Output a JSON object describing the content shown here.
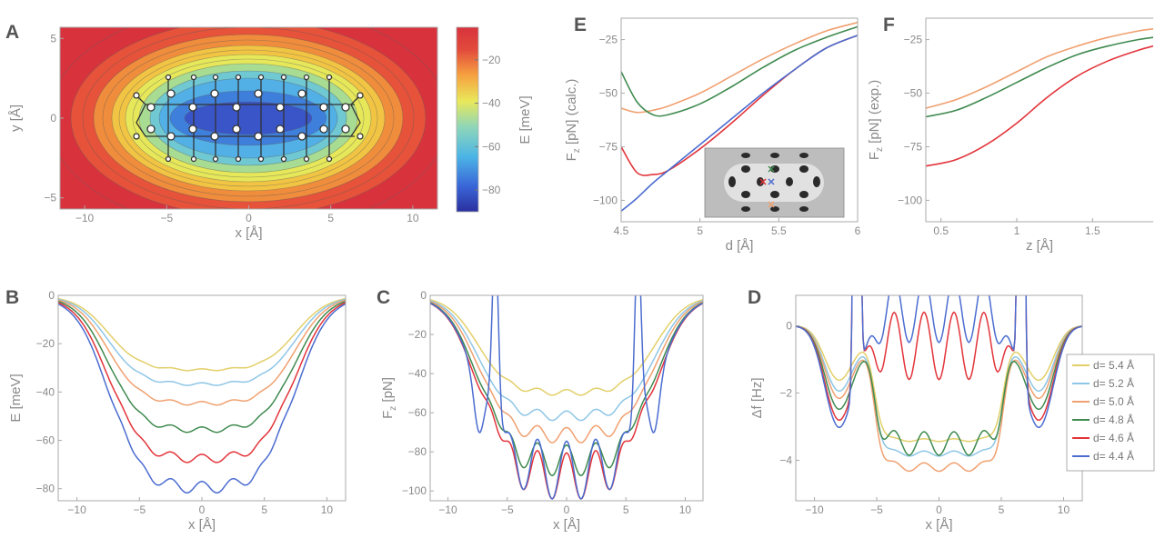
{
  "colors": {
    "d_5_4": "#e3cf6a",
    "d_5_2": "#8ec6e6",
    "d_5_0": "#f0a070",
    "d_4_8": "#3f8a4f",
    "d_4_6": "#e2343a",
    "d_4_4": "#4b6cd0",
    "axis": "#b0b0b0",
    "text": "#8a8a8a"
  },
  "chart_data": [
    {
      "panel": "A",
      "type": "heatmap",
      "xlabel": "x [Å]",
      "ylabel": "y [Å]",
      "xlim": [
        -11.5,
        11.5
      ],
      "ylim": [
        -5.7,
        5.7
      ],
      "xticks": [
        -10,
        -5,
        0,
        5,
        10
      ],
      "yticks": [
        -5,
        0,
        5
      ],
      "colorbar_label": "E [meV]",
      "colorbar_ticks": [
        -20,
        -40,
        -60,
        -80
      ],
      "colorbar_range": [
        -90,
        -5
      ],
      "colorscale": "jet"
    },
    {
      "panel": "E",
      "type": "line",
      "xlabel": "d [Å]",
      "ylabel": "F_z [pN] (calc.)",
      "ylabel_main": "F",
      "ylabel_sub": "z",
      "ylabel_rest": " [pN] (calc.)",
      "xlim": [
        4.5,
        6
      ],
      "ylim": [
        -110,
        -15
      ],
      "xticks": [
        4.5,
        5,
        5.5,
        6
      ],
      "yticks": [
        -25,
        -50,
        -75,
        -100
      ],
      "series": [
        {
          "color_key": "d_5_0",
          "x": [
            4.5,
            4.6,
            4.7,
            4.8,
            5.0,
            5.2,
            5.4,
            5.6,
            5.8,
            6.0
          ],
          "y": [
            -57,
            -59,
            -58,
            -56,
            -50,
            -42,
            -34,
            -27,
            -21,
            -17
          ]
        },
        {
          "color_key": "d_4_8",
          "x": [
            4.5,
            4.6,
            4.7,
            4.8,
            5.0,
            5.2,
            5.4,
            5.6,
            5.8,
            6.0
          ],
          "y": [
            -40,
            -54,
            -60,
            -60,
            -55,
            -47,
            -38,
            -30,
            -24,
            -19
          ]
        },
        {
          "color_key": "d_4_6",
          "x": [
            4.5,
            4.6,
            4.7,
            4.8,
            5.0,
            5.2,
            5.4,
            5.6,
            5.8,
            6.0
          ],
          "y": [
            -75,
            -87,
            -88,
            -86,
            -76,
            -64,
            -51,
            -39,
            -29,
            -23
          ]
        },
        {
          "color_key": "d_4_4",
          "x": [
            4.5,
            4.6,
            4.7,
            4.8,
            5.0,
            5.2,
            5.4,
            5.6,
            5.8,
            6.0
          ],
          "y": [
            -105,
            -99,
            -92,
            -86,
            -74,
            -62,
            -50,
            -39,
            -29,
            -23
          ]
        }
      ]
    },
    {
      "panel": "F",
      "type": "line",
      "xlabel": "z [Å]",
      "ylabel": "F_z [pN] (exp.)",
      "ylabel_main": "F",
      "ylabel_sub": "z",
      "ylabel_rest": " [pN] (exp.)",
      "xlim": [
        0.4,
        1.9
      ],
      "ylim": [
        -110,
        -15
      ],
      "xticks": [
        0.5,
        1,
        1.5
      ],
      "yticks": [
        -25,
        -50,
        -75,
        -100
      ],
      "series": [
        {
          "color_key": "d_5_0",
          "x": [
            0.4,
            0.6,
            0.8,
            1.0,
            1.2,
            1.4,
            1.6,
            1.8,
            1.9
          ],
          "y": [
            -57,
            -53,
            -47,
            -40,
            -33,
            -28,
            -24,
            -21,
            -20
          ]
        },
        {
          "color_key": "d_4_8",
          "x": [
            0.4,
            0.6,
            0.8,
            1.0,
            1.2,
            1.4,
            1.6,
            1.8,
            1.9
          ],
          "y": [
            -61,
            -58,
            -52,
            -45,
            -38,
            -32,
            -28,
            -25,
            -24
          ]
        },
        {
          "color_key": "d_4_6",
          "x": [
            0.4,
            0.6,
            0.8,
            1.0,
            1.2,
            1.4,
            1.6,
            1.8,
            1.9
          ],
          "y": [
            -84,
            -81,
            -74,
            -64,
            -52,
            -42,
            -35,
            -30,
            -28
          ]
        }
      ]
    },
    {
      "panel": "B",
      "type": "line",
      "xlabel": "x [Å]",
      "ylabel": "E [meV]",
      "xlim": [
        -11.5,
        11.5
      ],
      "ylim": [
        -85,
        0
      ],
      "xticks": [
        -10,
        -5,
        0,
        5,
        10
      ],
      "yticks": [
        0,
        -20,
        -40,
        -60,
        -80
      ],
      "profiles": [
        {
          "color_key": "d_5_4",
          "min": -31,
          "ripple": 0.4,
          "edge_step": 0
        },
        {
          "color_key": "d_5_2",
          "min": -37,
          "ripple": 0.6,
          "edge_step": 0
        },
        {
          "color_key": "d_5_0",
          "min": -45,
          "ripple": 0.8,
          "edge_step": 0
        },
        {
          "color_key": "d_4_8",
          "min": -56,
          "ripple": 1.2,
          "edge_step": 1
        },
        {
          "color_key": "d_4_6",
          "min": -68,
          "ripple": 1.8,
          "edge_step": 2
        },
        {
          "color_key": "d_4_4",
          "min": -80,
          "ripple": 2.5,
          "edge_step": 3
        }
      ]
    },
    {
      "panel": "C",
      "type": "line",
      "xlabel": "x [Å]",
      "ylabel": "F_z [pN]",
      "ylabel_main": "F",
      "ylabel_sub": "z",
      "ylabel_rest": " [pN]",
      "xlim": [
        -11.5,
        11.5
      ],
      "ylim": [
        -105,
        0
      ],
      "xticks": [
        -10,
        -5,
        0,
        5,
        10
      ],
      "yticks": [
        0,
        -20,
        -40,
        -60,
        -80,
        -100
      ],
      "profiles": [
        {
          "color_key": "d_5_4",
          "min": -50,
          "ripple": 1.5,
          "edge_step": 0
        },
        {
          "color_key": "d_5_2",
          "min": -62,
          "ripple": 2.5,
          "edge_step": 0
        },
        {
          "color_key": "d_5_0",
          "min": -72,
          "ripple": 4,
          "edge_step": 2
        },
        {
          "color_key": "d_4_8",
          "min": -85,
          "ripple": 8,
          "edge_step": 5
        },
        {
          "color_key": "d_4_6",
          "min": -93,
          "ripple": 12,
          "edge_step": 8
        },
        {
          "color_key": "d_4_4",
          "min": -90,
          "ripple": 15,
          "edge_step": 12,
          "spike": true
        }
      ]
    },
    {
      "panel": "D",
      "type": "line",
      "xlabel": "x [Å]",
      "ylabel": "Δf [Hz]",
      "xlim": [
        -11.5,
        11.5
      ],
      "ylim": [
        -5.2,
        0.9
      ],
      "xticks": [
        -10,
        -5,
        0,
        5,
        10
      ],
      "yticks": [
        0,
        -2,
        -4
      ],
      "legend_position": "right",
      "legend": [
        "d= 5.4 Å",
        "d= 5.2 Å",
        "d= 5.0 Å",
        "d= 4.8 Å",
        "d= 4.6 Å",
        "d= 4.4 Å"
      ],
      "legend_color_keys": [
        "d_5_4",
        "d_5_2",
        "d_5_0",
        "d_4_8",
        "d_4_6",
        "d_4_4"
      ],
      "profiles": [
        {
          "color_key": "d_5_4",
          "min": -3.4,
          "ripple": 0.08,
          "dip": -1.5
        },
        {
          "color_key": "d_5_2",
          "min": -3.8,
          "ripple": 0.15,
          "dip": -1.8
        },
        {
          "color_key": "d_5_0",
          "min": -4.2,
          "ripple": 0.25,
          "dip": -2.0
        },
        {
          "color_key": "d_4_8",
          "min": -3.5,
          "ripple": 0.7,
          "dip": -2.3
        },
        {
          "color_key": "d_4_6",
          "min": -0.6,
          "ripple": 2.0,
          "dip": -2.6,
          "blowup": true
        },
        {
          "color_key": "d_4_4",
          "min": 0.5,
          "ripple": 2.0,
          "dip": -2.8,
          "blowup": true
        }
      ]
    }
  ],
  "panels": {
    "A": {
      "letter": "A"
    },
    "B": {
      "letter": "B"
    },
    "C": {
      "letter": "C"
    },
    "D": {
      "letter": "D"
    },
    "E": {
      "letter": "E"
    },
    "F": {
      "letter": "F"
    }
  }
}
